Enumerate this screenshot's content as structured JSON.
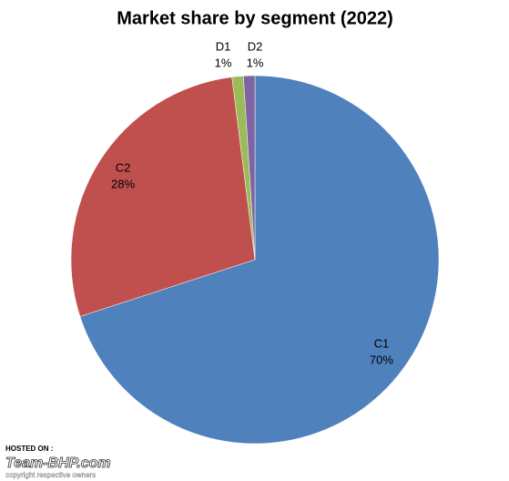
{
  "chart_data": {
    "type": "pie",
    "title": "Market share by segment (2022)",
    "categories": [
      "C1",
      "C2",
      "D1",
      "D2"
    ],
    "values": [
      70,
      28,
      1,
      1
    ],
    "value_labels": [
      "70%",
      "28%",
      "1%",
      "1%"
    ],
    "colors": [
      "#4f81bd",
      "#c0504d",
      "#9bbb59",
      "#8064a2"
    ]
  },
  "watermark": {
    "hosted": "HOSTED ON :",
    "site": "Team-BHP.com",
    "copyright": "copyright respective owners"
  }
}
